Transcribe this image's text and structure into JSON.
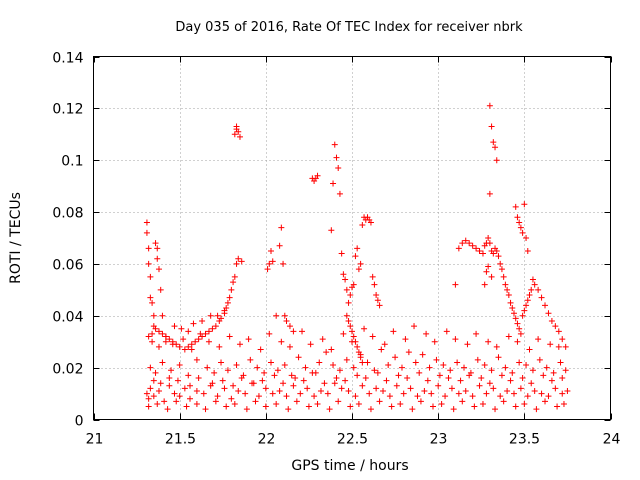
{
  "chart_data": {
    "type": "scatter",
    "title": "Day 035 of 2016, Rate Of TEC Index for receiver nbrk",
    "xlabel": "GPS time / hours",
    "ylabel": "ROTI / TECUs",
    "xlim": [
      21,
      24
    ],
    "ylim": [
      0,
      0.14
    ],
    "x_ticks": [
      21,
      21.5,
      22,
      22.5,
      23,
      23.5,
      24
    ],
    "x_tick_labels": [
      "21",
      "21.5",
      "22",
      "22.5",
      "23",
      "23.5",
      "24"
    ],
    "y_ticks": [
      0,
      0.02,
      0.04,
      0.06,
      0.08,
      0.1,
      0.12,
      0.14
    ],
    "y_tick_labels": [
      "0",
      "0.02",
      "0.04",
      "0.06",
      "0.08",
      "0.1",
      "0.12",
      "0.14"
    ],
    "grid": true,
    "marker": "plus",
    "color": "#ff0000",
    "series": [
      {
        "name": "ROTI",
        "x": [
          21.31,
          21.31,
          21.32,
          21.32,
          21.33,
          21.33,
          21.34,
          21.35,
          21.35,
          21.36,
          21.37,
          21.37,
          21.38,
          21.39,
          21.4,
          21.42,
          21.31,
          21.32,
          21.33,
          21.35,
          21.38,
          21.41,
          21.44,
          21.47,
          21.5,
          21.53,
          21.56,
          21.6,
          21.64,
          21.68,
          21.72,
          21.76,
          21.8,
          21.84,
          21.88,
          21.92,
          21.96,
          22.0,
          22.04,
          22.08,
          22.12,
          22.16,
          22.2,
          22.24,
          22.28,
          22.32,
          22.36,
          22.4,
          22.44,
          22.48,
          22.52,
          22.56,
          22.6,
          22.64,
          22.68,
          22.72,
          22.76,
          22.8,
          22.84,
          22.88,
          22.92,
          22.96,
          23.0,
          23.04,
          23.08,
          23.12,
          23.16,
          23.2,
          23.24,
          23.28,
          23.32,
          23.36,
          23.4,
          23.44,
          23.48,
          23.52,
          23.56,
          23.6,
          23.64,
          23.68,
          23.72,
          23.75,
          21.33,
          21.36,
          21.4,
          21.45,
          21.5,
          21.55,
          21.6,
          21.66,
          21.7,
          21.74,
          21.78,
          21.83,
          21.87,
          21.91,
          21.95,
          21.99,
          22.03,
          22.07,
          22.11,
          22.15,
          22.19,
          22.23,
          22.27,
          22.31,
          22.35,
          22.39,
          22.43,
          22.47,
          22.51,
          22.55,
          22.59,
          22.63,
          22.67,
          22.71,
          22.75,
          22.79,
          22.83,
          22.87,
          22.91,
          22.95,
          22.99,
          23.03,
          23.07,
          23.11,
          23.15,
          23.19,
          23.23,
          23.27,
          23.31,
          23.35,
          23.39,
          23.43,
          23.47,
          23.51,
          23.55,
          23.59,
          23.63,
          23.67,
          23.71,
          23.74,
          21.34,
          21.38,
          21.42,
          21.46,
          21.52,
          21.57,
          21.62,
          21.67,
          21.73,
          21.79,
          21.85,
          21.9,
          21.97,
          22.02,
          22.09,
          22.14,
          22.21,
          22.26,
          22.33,
          22.38,
          22.45,
          22.5,
          22.57,
          22.62,
          22.69,
          22.74,
          22.81,
          22.86,
          22.93,
          22.98,
          23.05,
          23.1,
          23.17,
          23.22,
          23.29,
          23.34,
          23.41,
          23.46,
          23.53,
          23.58,
          23.65,
          23.7,
          21.32,
          21.37,
          21.43,
          21.48,
          21.54,
          21.6,
          21.65,
          21.71,
          21.77,
          21.82,
          21.89,
          21.94,
          22.0,
          22.06,
          22.13,
          22.18,
          22.25,
          22.3,
          22.37,
          22.42,
          22.49,
          22.54,
          22.61,
          22.66,
          22.73,
          22.78,
          22.85,
          22.9,
          22.97,
          23.02,
          23.09,
          23.14,
          23.21,
          23.26,
          23.33,
          23.38,
          23.45,
          23.5,
          23.57,
          23.62,
          23.69,
          23.73,
          21.35,
          21.39,
          21.44,
          21.49,
          21.56,
          21.61,
          21.69,
          21.75,
          21.81,
          21.86,
          21.93,
          21.98,
          22.05,
          22.1,
          22.17,
          22.22,
          22.29,
          22.34,
          22.41,
          22.46,
          22.53,
          22.58,
          22.65,
          22.7,
          22.77,
          22.82,
          22.89,
          22.94,
          23.01,
          23.06,
          23.13,
          23.18,
          23.25,
          23.3,
          23.37,
          23.42,
          23.49,
          23.54,
          23.61,
          23.66,
          23.72,
          21.47,
          21.51,
          21.55,
          21.58,
          21.63,
          21.68,
          21.72,
          21.76,
          21.8,
          21.82,
          21.83,
          21.84,
          21.86,
          21.81,
          21.79,
          21.78,
          21.77,
          21.76,
          21.74,
          21.73,
          21.71,
          21.69,
          21.67,
          21.65,
          21.63,
          21.61,
          21.59,
          21.57,
          21.55,
          21.53,
          21.5,
          21.48,
          21.46,
          21.44,
          21.42,
          21.4,
          21.38,
          21.36,
          21.34,
          21.32,
          21.83,
          21.84,
          21.85,
          21.83,
          21.82,
          22.01,
          22.02,
          22.03,
          22.04,
          22.06,
          22.08,
          22.09,
          22.1,
          22.11,
          22.12,
          22.14,
          22.16,
          22.27,
          22.28,
          22.29,
          22.3,
          22.38,
          22.39,
          22.4,
          22.41,
          22.42,
          22.43,
          22.44,
          22.45,
          22.46,
          22.47,
          22.48,
          22.49,
          22.5,
          22.51,
          22.52,
          22.53,
          22.54,
          22.55,
          22.56,
          22.57,
          22.58,
          22.59,
          22.6,
          22.61,
          22.62,
          22.63,
          22.64,
          22.65,
          22.66,
          22.47,
          22.48,
          22.49,
          22.5,
          22.51,
          22.52,
          22.53,
          22.54,
          22.55,
          22.56,
          23.1,
          23.12,
          23.14,
          23.16,
          23.18,
          23.2,
          23.22,
          23.24,
          23.26,
          23.27,
          23.28,
          23.29,
          23.3,
          23.31,
          23.32,
          23.33,
          23.34,
          23.35,
          23.36,
          23.37,
          23.38,
          23.39,
          23.4,
          23.41,
          23.42,
          23.43,
          23.44,
          23.45,
          23.46,
          23.47,
          23.48,
          23.49,
          23.5,
          23.51,
          23.52,
          23.53,
          23.54,
          23.55,
          23.56,
          23.58,
          23.6,
          23.62,
          23.64,
          23.66,
          23.68,
          23.7,
          23.72,
          23.74,
          23.3,
          23.31,
          23.32,
          23.33,
          23.34,
          23.3,
          23.29,
          23.31,
          23.28,
          23.27,
          23.45,
          23.46,
          23.47,
          23.48,
          23.49,
          23.5,
          23.51,
          23.52
        ],
        "y": [
          0.076,
          0.072,
          0.066,
          0.06,
          0.055,
          0.047,
          0.045,
          0.04,
          0.036,
          0.068,
          0.066,
          0.062,
          0.058,
          0.05,
          0.04,
          0.03,
          0.01,
          0.008,
          0.012,
          0.009,
          0.011,
          0.007,
          0.013,
          0.01,
          0.009,
          0.012,
          0.008,
          0.011,
          0.01,
          0.013,
          0.009,
          0.012,
          0.008,
          0.011,
          0.01,
          0.014,
          0.009,
          0.012,
          0.01,
          0.011,
          0.009,
          0.013,
          0.01,
          0.012,
          0.009,
          0.011,
          0.01,
          0.014,
          0.012,
          0.011,
          0.009,
          0.013,
          0.01,
          0.012,
          0.011,
          0.009,
          0.013,
          0.01,
          0.012,
          0.009,
          0.011,
          0.01,
          0.013,
          0.009,
          0.012,
          0.01,
          0.011,
          0.009,
          0.013,
          0.01,
          0.012,
          0.009,
          0.011,
          0.01,
          0.012,
          0.009,
          0.011,
          0.01,
          0.009,
          0.012,
          0.01,
          0.011,
          0.02,
          0.018,
          0.022,
          0.019,
          0.021,
          0.017,
          0.023,
          0.02,
          0.018,
          0.022,
          0.019,
          0.021,
          0.017,
          0.023,
          0.02,
          0.018,
          0.022,
          0.019,
          0.021,
          0.017,
          0.024,
          0.02,
          0.018,
          0.022,
          0.026,
          0.021,
          0.019,
          0.023,
          0.02,
          0.025,
          0.022,
          0.019,
          0.027,
          0.021,
          0.024,
          0.02,
          0.026,
          0.022,
          0.025,
          0.02,
          0.023,
          0.021,
          0.019,
          0.022,
          0.02,
          0.018,
          0.023,
          0.021,
          0.019,
          0.024,
          0.02,
          0.018,
          0.022,
          0.021,
          0.019,
          0.023,
          0.02,
          0.018,
          0.022,
          0.019,
          0.03,
          0.028,
          0.032,
          0.029,
          0.031,
          0.027,
          0.033,
          0.03,
          0.028,
          0.032,
          0.029,
          0.031,
          0.027,
          0.033,
          0.03,
          0.028,
          0.034,
          0.029,
          0.031,
          0.027,
          0.033,
          0.03,
          0.035,
          0.032,
          0.029,
          0.034,
          0.031,
          0.036,
          0.033,
          0.03,
          0.034,
          0.031,
          0.029,
          0.033,
          0.03,
          0.028,
          0.032,
          0.03,
          0.027,
          0.031,
          0.029,
          0.028,
          0.005,
          0.006,
          0.004,
          0.007,
          0.005,
          0.006,
          0.004,
          0.007,
          0.005,
          0.006,
          0.004,
          0.007,
          0.005,
          0.006,
          0.004,
          0.007,
          0.005,
          0.006,
          0.004,
          0.007,
          0.005,
          0.006,
          0.004,
          0.007,
          0.005,
          0.006,
          0.004,
          0.007,
          0.005,
          0.006,
          0.004,
          0.007,
          0.005,
          0.006,
          0.004,
          0.007,
          0.005,
          0.006,
          0.004,
          0.007,
          0.005,
          0.006,
          0.015,
          0.014,
          0.016,
          0.015,
          0.013,
          0.016,
          0.014,
          0.015,
          0.013,
          0.016,
          0.014,
          0.015,
          0.017,
          0.014,
          0.016,
          0.015,
          0.018,
          0.014,
          0.016,
          0.015,
          0.017,
          0.016,
          0.018,
          0.015,
          0.017,
          0.016,
          0.018,
          0.015,
          0.017,
          0.016,
          0.015,
          0.017,
          0.016,
          0.014,
          0.017,
          0.015,
          0.016,
          0.014,
          0.017,
          0.015,
          0.016,
          0.036,
          0.035,
          0.034,
          0.037,
          0.038,
          0.04,
          0.04,
          0.042,
          0.05,
          0.055,
          0.06,
          0.062,
          0.061,
          0.053,
          0.047,
          0.045,
          0.043,
          0.041,
          0.039,
          0.038,
          0.036,
          0.035,
          0.034,
          0.033,
          0.032,
          0.031,
          0.03,
          0.029,
          0.028,
          0.027,
          0.028,
          0.029,
          0.03,
          0.031,
          0.032,
          0.033,
          0.034,
          0.035,
          0.033,
          0.032,
          0.113,
          0.111,
          0.109,
          0.112,
          0.11,
          0.058,
          0.06,
          0.065,
          0.061,
          0.04,
          0.067,
          0.074,
          0.06,
          0.04,
          0.038,
          0.036,
          0.034,
          0.093,
          0.092,
          0.093,
          0.094,
          0.073,
          0.091,
          0.106,
          0.101,
          0.097,
          0.087,
          0.064,
          0.056,
          0.054,
          0.05,
          0.045,
          0.048,
          0.051,
          0.052,
          0.063,
          0.066,
          0.058,
          0.06,
          0.075,
          0.078,
          0.077,
          0.078,
          0.077,
          0.076,
          0.055,
          0.052,
          0.048,
          0.046,
          0.044,
          0.04,
          0.038,
          0.036,
          0.034,
          0.032,
          0.03,
          0.028,
          0.026,
          0.024,
          0.022,
          0.052,
          0.066,
          0.068,
          0.069,
          0.068,
          0.067,
          0.066,
          0.065,
          0.064,
          0.067,
          0.068,
          0.07,
          0.068,
          0.065,
          0.064,
          0.066,
          0.065,
          0.063,
          0.06,
          0.058,
          0.055,
          0.052,
          0.05,
          0.048,
          0.045,
          0.043,
          0.041,
          0.039,
          0.037,
          0.035,
          0.033,
          0.04,
          0.042,
          0.044,
          0.046,
          0.048,
          0.05,
          0.054,
          0.052,
          0.05,
          0.047,
          0.044,
          0.041,
          0.038,
          0.036,
          0.034,
          0.031,
          0.028,
          0.121,
          0.113,
          0.107,
          0.105,
          0.1,
          0.087,
          0.059,
          0.055,
          0.057,
          0.052,
          0.082,
          0.078,
          0.076,
          0.074,
          0.072,
          0.083,
          0.07,
          0.065
        ]
      }
    ]
  }
}
